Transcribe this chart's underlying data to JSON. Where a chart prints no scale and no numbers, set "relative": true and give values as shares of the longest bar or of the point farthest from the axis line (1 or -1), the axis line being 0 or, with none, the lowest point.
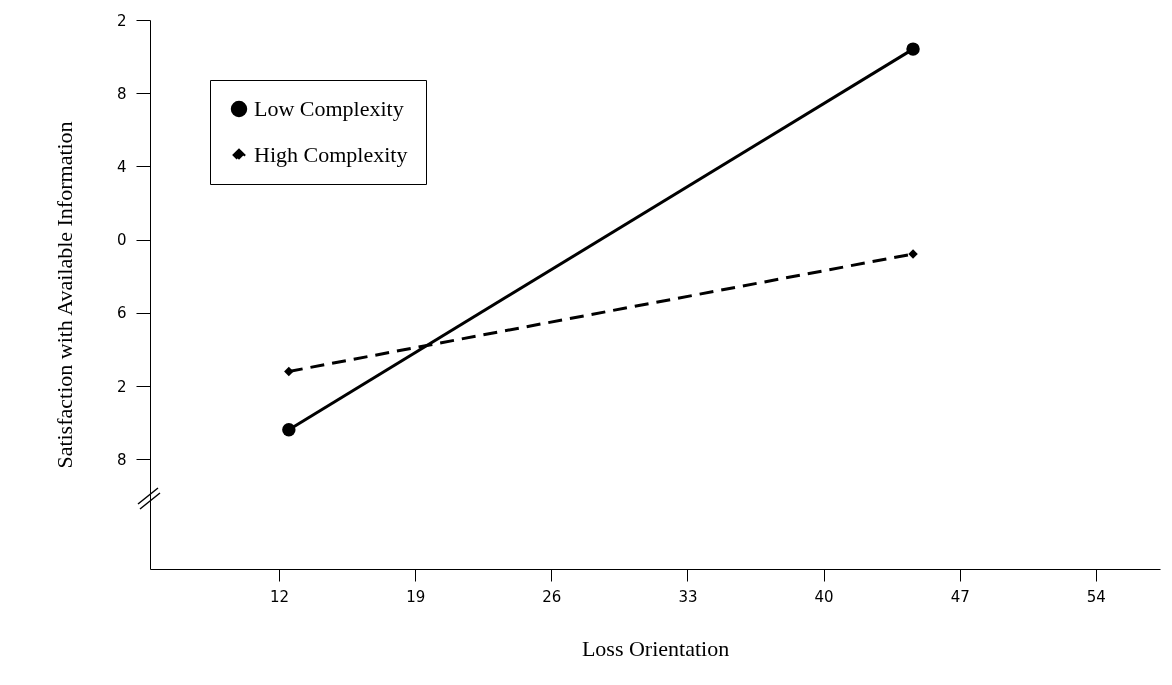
{
  "chart_data": {
    "type": "line",
    "xlabel": "Loss Orientation",
    "ylabel": "Satisfaction with Available Information",
    "relative": true,
    "xlim": [
      5.36,
      57.3
    ],
    "xticks": [
      12,
      19,
      26,
      33,
      40,
      47,
      54
    ],
    "x": [
      12.5,
      44.6
    ],
    "annotations": [
      "8",
      "2",
      "6",
      "0",
      "4",
      "8",
      "2"
    ],
    "grid": false,
    "legend": "top left",
    "series": [
      {
        "name": "Low Complexity",
        "color": "#000000",
        "values": [
          0.268,
          1
        ],
        "marker": "circle",
        "line_style": "solid"
      },
      {
        "name": "High Complexity",
        "color": "#000000",
        "values": [
          0.38,
          0.606
        ],
        "marker": "diamond",
        "line_style": "dashed"
      }
    ]
  }
}
